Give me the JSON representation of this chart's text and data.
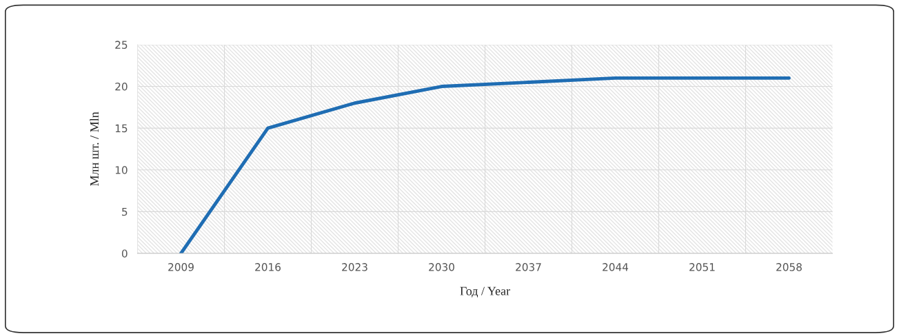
{
  "chart_data": {
    "type": "line",
    "xlabel": "Год / Year",
    "ylabel": "Млн шт. / Mln",
    "categories": [
      "2009",
      "2016",
      "2023",
      "2030",
      "2037",
      "2044",
      "2051",
      "2058"
    ],
    "series": [
      {
        "color": "#1f6db3",
        "values": [
          0,
          15,
          18,
          20,
          20.5,
          21,
          21,
          21
        ]
      }
    ],
    "ylim": [
      0,
      25
    ],
    "yticks": [
      0,
      5,
      10,
      15,
      20,
      25
    ],
    "grid": true,
    "marker": "none",
    "line_style": "solid"
  }
}
